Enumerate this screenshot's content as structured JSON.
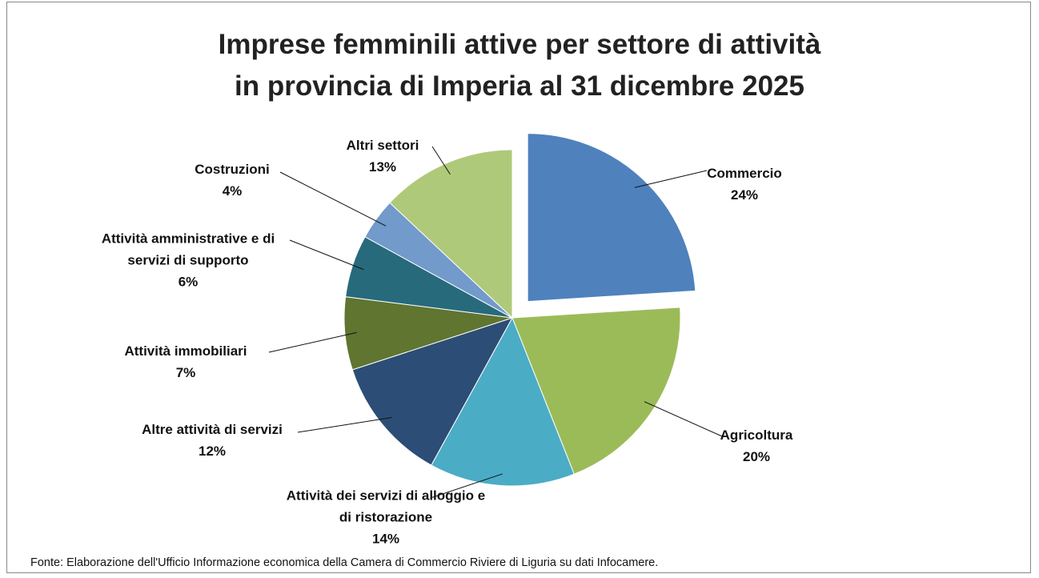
{
  "chart_data": {
    "type": "pie",
    "title": [
      "Imprese femminili attive per settore di attività",
      "in provincia di Imperia al 31 dicembre 2025"
    ],
    "categories": [
      "Commercio",
      "Agricoltura",
      "Attività dei servizi di alloggio e di ristorazione",
      "Altre attività di servizi",
      "Attività immobiliari",
      "Attività amministrative e di servizi di supporto",
      "Costruzioni",
      "Altri settori"
    ],
    "values": [
      24,
      20,
      14,
      12,
      7,
      6,
      4,
      13
    ],
    "value_labels": [
      "24%",
      "20%",
      "14%",
      "12%",
      "7%",
      "6%",
      "4%",
      "13%"
    ],
    "colors": [
      "#4f81bd",
      "#9bbb59",
      "#4bacc6",
      "#2c4d75",
      "#5f7530",
      "#276a7c",
      "#729aca",
      "#afc97a"
    ],
    "source": "Fonte: Elaborazione dell'Ufficio Informazione economica della Camera di Commercio Riviere di Liguria su dati Infocamere."
  }
}
